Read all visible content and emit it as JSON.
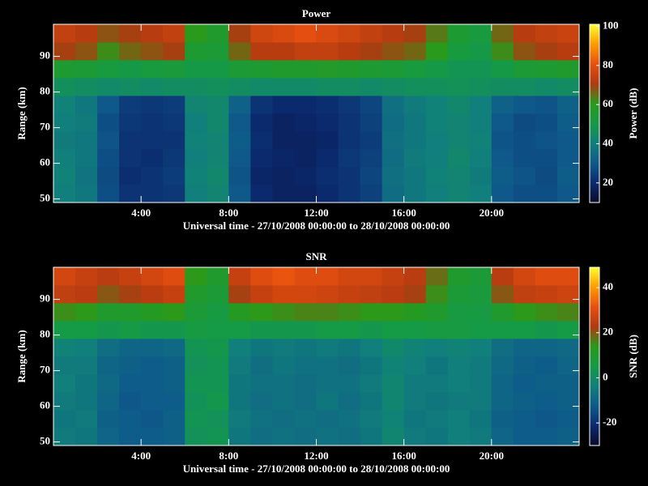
{
  "chart_data": [
    {
      "type": "heatmap",
      "title": "Power",
      "xlabel": "Universal time - 27/10/2008 00:00:00 to 28/10/2008 00:00:00",
      "ylabel": "Range (km)",
      "x": [
        0.5,
        1.5,
        2.5,
        3.5,
        4.5,
        5.5,
        6.5,
        7.5,
        8.5,
        9.5,
        10.5,
        11.5,
        12.5,
        13.5,
        14.5,
        15.5,
        16.5,
        17.5,
        18.5,
        19.5,
        20.5,
        21.5,
        22.5,
        23.5
      ],
      "y": [
        51.5,
        56.5,
        61.5,
        66.5,
        71.5,
        76.5,
        81.5,
        86.5,
        91.5,
        96.5
      ],
      "values": [
        [
          40,
          38,
          28,
          22,
          22,
          23,
          40,
          42,
          30,
          20,
          18,
          18,
          20,
          22,
          25,
          35,
          38,
          40,
          42,
          40,
          30,
          28,
          28,
          30
        ],
        [
          41,
          37,
          27,
          21,
          22,
          24,
          41,
          43,
          29,
          19,
          18,
          19,
          21,
          22,
          26,
          36,
          38,
          41,
          42,
          39,
          31,
          29,
          27,
          31
        ],
        [
          40,
          38,
          28,
          22,
          21,
          23,
          40,
          42,
          30,
          20,
          19,
          18,
          20,
          23,
          25,
          35,
          39,
          40,
          43,
          40,
          30,
          28,
          28,
          30
        ],
        [
          39,
          38,
          29,
          22,
          22,
          22,
          41,
          42,
          31,
          21,
          18,
          18,
          19,
          22,
          24,
          36,
          38,
          40,
          42,
          41,
          29,
          28,
          29,
          30
        ],
        [
          40,
          39,
          28,
          23,
          22,
          23,
          40,
          43,
          30,
          20,
          18,
          19,
          20,
          22,
          25,
          35,
          38,
          41,
          42,
          40,
          30,
          27,
          28,
          31
        ],
        [
          41,
          38,
          30,
          24,
          23,
          24,
          42,
          43,
          32,
          22,
          20,
          20,
          21,
          23,
          26,
          36,
          39,
          41,
          43,
          40,
          32,
          30,
          29,
          32
        ],
        [
          46,
          45,
          44,
          45,
          44,
          45,
          45,
          46,
          45,
          44,
          44,
          44,
          45,
          45,
          44,
          45,
          46,
          46,
          47,
          46,
          45,
          45,
          44,
          45
        ],
        [
          55,
          54,
          52,
          50,
          52,
          53,
          50,
          50,
          54,
          55,
          56,
          56,
          57,
          56,
          55,
          54,
          52,
          50,
          48,
          48,
          50,
          54,
          55,
          56
        ],
        [
          70,
          68,
          62,
          66,
          68,
          70,
          55,
          54,
          66,
          72,
          72,
          74,
          74,
          72,
          70,
          68,
          66,
          60,
          52,
          50,
          62,
          68,
          70,
          72
        ],
        [
          74,
          72,
          68,
          70,
          72,
          74,
          60,
          56,
          70,
          76,
          78,
          80,
          78,
          76,
          74,
          72,
          70,
          64,
          55,
          52,
          66,
          72,
          74,
          75
        ]
      ],
      "xlim": [
        0,
        24
      ],
      "xticks": [
        {
          "value": 4,
          "label": "4:00"
        },
        {
          "value": 8,
          "label": "8:00"
        },
        {
          "value": 12,
          "label": "12:00"
        },
        {
          "value": 16,
          "label": "16:00"
        },
        {
          "value": 20,
          "label": "20:00"
        }
      ],
      "ylim": [
        49,
        99
      ],
      "yticks": [
        50,
        60,
        70,
        80,
        90
      ],
      "colorbar": {
        "label": "Power (dB)",
        "clim": [
          10,
          101
        ],
        "cticks": [
          20,
          40,
          60,
          80,
          100
        ]
      },
      "colormap": [
        "#0a0a2a",
        "#0b2a6e",
        "#0e5a8a",
        "#11807a",
        "#159a45",
        "#2a9a1a",
        "#b03a10",
        "#e85010",
        "#ff9a00",
        "#ffff30"
      ]
    },
    {
      "type": "heatmap",
      "title": "SNR",
      "xlabel": "Universal time - 27/10/2008 00:00:00 to 28/10/2008 00:00:00",
      "ylabel": "Range (km)",
      "x": [
        0.5,
        1.5,
        2.5,
        3.5,
        4.5,
        5.5,
        6.5,
        7.5,
        8.5,
        9.5,
        10.5,
        11.5,
        12.5,
        13.5,
        14.5,
        15.5,
        16.5,
        17.5,
        18.5,
        19.5,
        20.5,
        21.5,
        22.5,
        23.5
      ],
      "y": [
        51.5,
        56.5,
        61.5,
        66.5,
        71.5,
        76.5,
        81.5,
        86.5,
        91.5,
        96.5
      ],
      "values": [
        [
          -5,
          -6,
          -10,
          -12,
          -12,
          -11,
          2,
          3,
          -6,
          -8,
          -7,
          -8,
          -7,
          -8,
          -6,
          -2,
          -5,
          -6,
          -4,
          -5,
          -10,
          -12,
          -12,
          -11
        ],
        [
          -6,
          -5,
          -11,
          -12,
          -13,
          -11,
          3,
          2,
          -5,
          -7,
          -8,
          -7,
          -8,
          -7,
          -5,
          -3,
          -6,
          -5,
          -4,
          -6,
          -11,
          -12,
          -13,
          -12
        ],
        [
          -5,
          -6,
          -10,
          -13,
          -12,
          -12,
          2,
          4,
          -6,
          -8,
          -7,
          -8,
          -6,
          -8,
          -6,
          -2,
          -5,
          -6,
          -5,
          -5,
          -10,
          -11,
          -12,
          -11
        ],
        [
          -4,
          -6,
          -9,
          -12,
          -12,
          -11,
          3,
          3,
          -6,
          -7,
          -7,
          -8,
          -7,
          -7,
          -5,
          -2,
          -5,
          -5,
          -4,
          -5,
          -10,
          -12,
          -11,
          -11
        ],
        [
          -5,
          -5,
          -10,
          -11,
          -12,
          -11,
          2,
          3,
          -5,
          -8,
          -6,
          -7,
          -7,
          -8,
          -6,
          -3,
          -4,
          -6,
          -4,
          -5,
          -9,
          -11,
          -12,
          -10
        ],
        [
          -3,
          -4,
          -8,
          -10,
          -10,
          -9,
          3,
          4,
          -4,
          -6,
          -5,
          -6,
          -5,
          -6,
          -4,
          -1,
          -3,
          -4,
          -3,
          -4,
          -8,
          -10,
          -10,
          -9
        ],
        [
          5,
          5,
          4,
          5,
          4,
          4,
          6,
          5,
          5,
          4,
          4,
          4,
          5,
          5,
          4,
          5,
          5,
          6,
          6,
          5,
          5,
          5,
          4,
          5
        ],
        [
          15,
          14,
          10,
          10,
          12,
          14,
          8,
          6,
          12,
          14,
          15,
          16,
          16,
          15,
          14,
          14,
          12,
          10,
          6,
          6,
          10,
          14,
          15,
          16
        ],
        [
          25,
          24,
          20,
          22,
          24,
          26,
          10,
          8,
          22,
          26,
          28,
          28,
          27,
          26,
          25,
          24,
          22,
          15,
          8,
          7,
          20,
          25,
          26,
          27
        ],
        [
          28,
          26,
          24,
          26,
          28,
          30,
          14,
          10,
          26,
          30,
          32,
          30,
          30,
          28,
          28,
          26,
          24,
          18,
          10,
          8,
          24,
          28,
          30,
          30
        ]
      ],
      "xlim": [
        0,
        24
      ],
      "xticks": [
        {
          "value": 4,
          "label": "4:00"
        },
        {
          "value": 8,
          "label": "8:00"
        },
        {
          "value": 12,
          "label": "12:00"
        },
        {
          "value": 16,
          "label": "16:00"
        },
        {
          "value": 20,
          "label": "20:00"
        }
      ],
      "ylim": [
        49,
        99
      ],
      "yticks": [
        50,
        60,
        70,
        80,
        90
      ],
      "colorbar": {
        "label": "SNR (dB)",
        "clim": [
          -30,
          49
        ],
        "cticks": [
          -20,
          0,
          20,
          40
        ]
      },
      "colormap": [
        "#0a0a2a",
        "#0b2a6e",
        "#0e5a8a",
        "#11807a",
        "#159a45",
        "#2a9a1a",
        "#b03a10",
        "#e85010",
        "#ff9a00",
        "#ffff30"
      ]
    }
  ]
}
